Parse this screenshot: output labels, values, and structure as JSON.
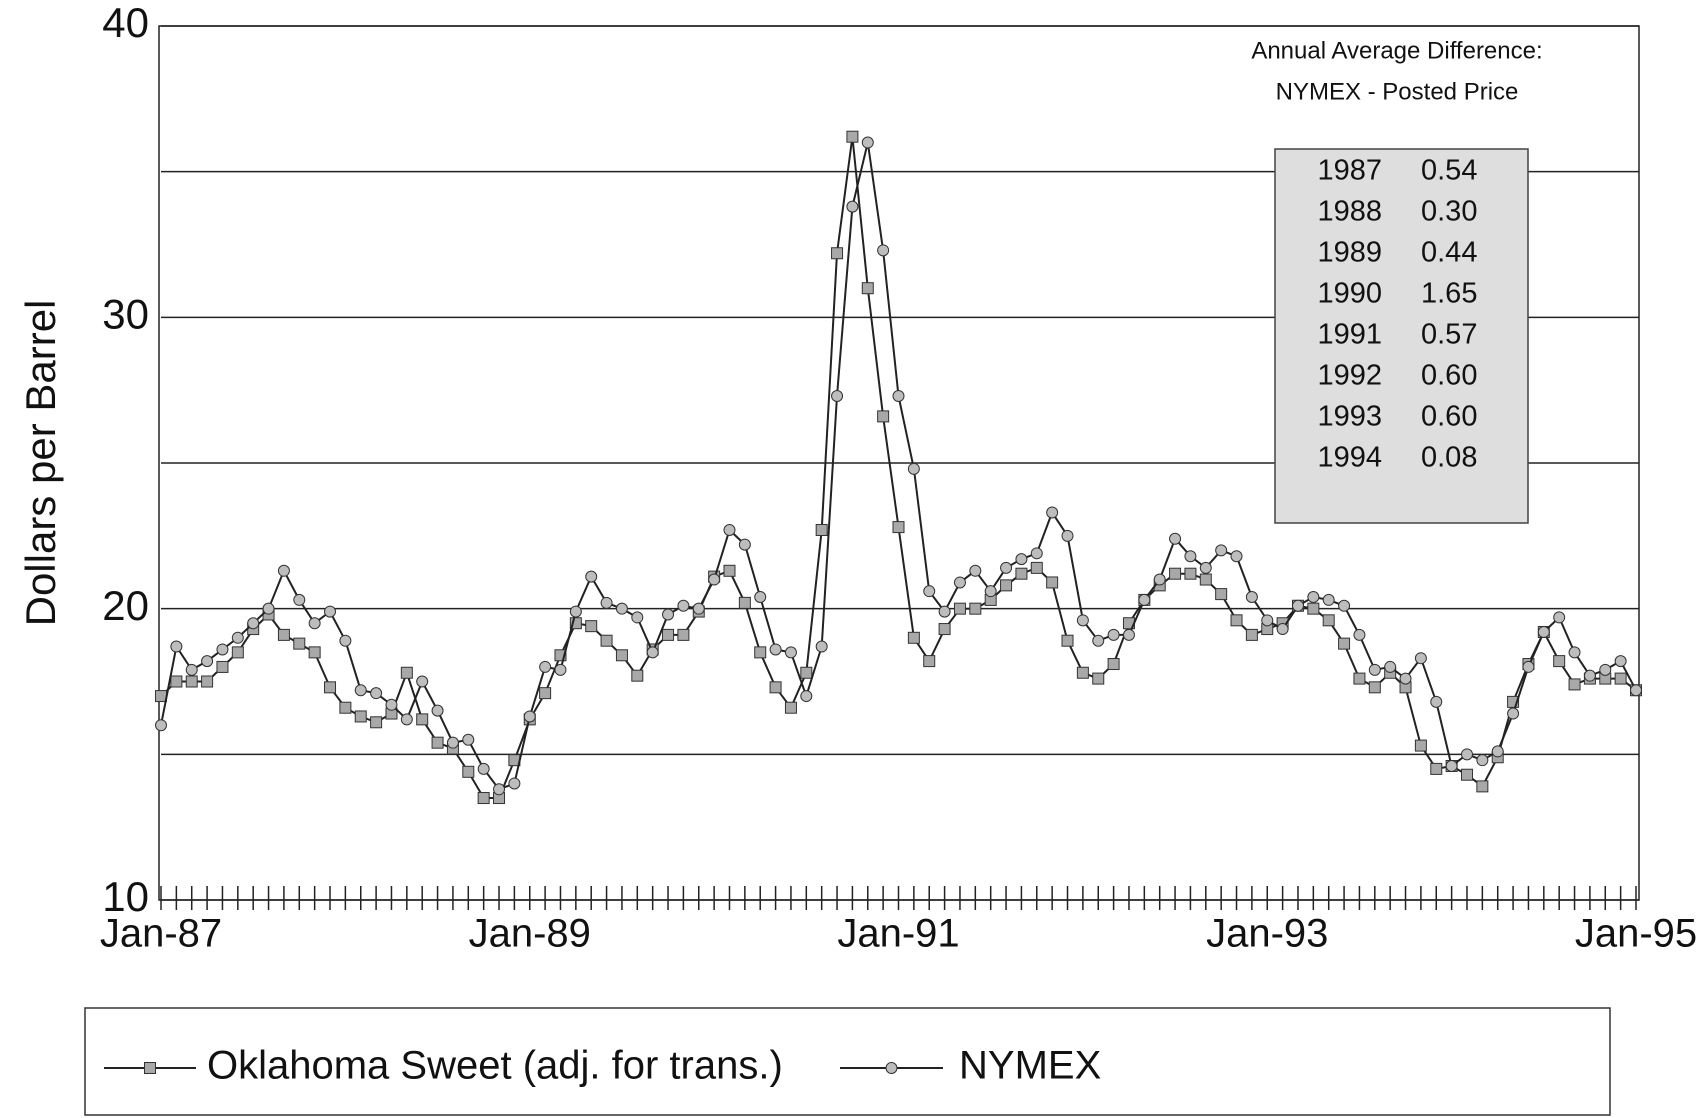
{
  "chart_data": {
    "type": "line",
    "y_label": "Dollars per Barrel",
    "categories": [
      "Jan-87",
      null,
      null,
      null,
      null,
      null,
      null,
      null,
      null,
      null,
      null,
      null,
      null,
      null,
      null,
      null,
      null,
      null,
      null,
      null,
      null,
      null,
      null,
      null,
      "Jan-89",
      null,
      null,
      null,
      null,
      null,
      null,
      null,
      null,
      null,
      null,
      null,
      null,
      null,
      null,
      null,
      null,
      null,
      null,
      null,
      null,
      null,
      null,
      null,
      "Jan-91",
      null,
      null,
      null,
      null,
      null,
      null,
      null,
      null,
      null,
      null,
      null,
      null,
      null,
      null,
      null,
      null,
      null,
      null,
      null,
      null,
      null,
      null,
      null,
      "Jan-93",
      null,
      null,
      null,
      null,
      null,
      null,
      null,
      null,
      null,
      null,
      null,
      null,
      null,
      null,
      null,
      null,
      null,
      null,
      null,
      null,
      null,
      null,
      null,
      "Jan-95"
    ],
    "ylim": [
      10,
      40
    ],
    "yticks": [
      10,
      20,
      30,
      40
    ],
    "minor_yticks": [
      15,
      25,
      35
    ],
    "grid": true,
    "series": [
      {
        "name": "Oklahoma Sweet (adj. for trans.)",
        "color": "#222222",
        "marker": "square",
        "values": [
          17.0,
          17.5,
          17.5,
          17.5,
          18.0,
          18.5,
          19.3,
          19.8,
          19.1,
          18.8,
          18.5,
          17.3,
          16.6,
          16.3,
          16.1,
          16.4,
          17.8,
          16.2,
          15.4,
          15.2,
          14.4,
          13.5,
          13.5,
          14.8,
          16.2,
          17.1,
          18.4,
          19.5,
          19.4,
          18.9,
          18.4,
          17.7,
          18.6,
          19.1,
          19.1,
          19.9,
          21.1,
          21.3,
          20.2,
          18.5,
          17.3,
          16.6,
          17.8,
          22.7,
          32.2,
          36.2,
          31.0,
          26.6,
          22.8,
          19.0,
          18.2,
          19.3,
          20.0,
          20.0,
          20.3,
          20.8,
          21.2,
          21.4,
          20.9,
          18.9,
          17.8,
          17.6,
          18.1,
          19.5,
          20.3,
          20.8,
          21.2,
          21.2,
          21.0,
          20.5,
          19.6,
          19.1,
          19.3,
          19.5,
          20.1,
          20.0,
          19.6,
          18.8,
          17.6,
          17.3,
          17.8,
          17.3,
          15.3,
          14.5,
          14.6,
          14.3,
          13.9,
          14.9,
          16.8,
          18.1,
          19.2,
          18.2,
          17.4,
          17.6,
          17.6,
          17.6,
          17.2
        ]
      },
      {
        "name": "NYMEX",
        "color": "#222222",
        "marker": "circle",
        "values": [
          16.0,
          18.7,
          17.9,
          18.2,
          18.6,
          19.0,
          19.5,
          20.0,
          21.3,
          20.3,
          19.5,
          19.9,
          18.9,
          17.2,
          17.1,
          16.7,
          16.2,
          17.5,
          16.5,
          15.4,
          15.5,
          14.5,
          13.8,
          14.0,
          16.3,
          18.0,
          17.9,
          19.9,
          21.1,
          20.2,
          20.0,
          19.7,
          18.5,
          19.8,
          20.1,
          20.0,
          21.0,
          22.7,
          22.2,
          20.4,
          18.6,
          18.5,
          17.0,
          18.7,
          27.3,
          33.8,
          36.0,
          32.3,
          27.3,
          24.8,
          20.6,
          19.9,
          20.9,
          21.3,
          20.6,
          21.4,
          21.7,
          21.9,
          23.3,
          22.5,
          19.6,
          18.9,
          19.1,
          19.1,
          20.3,
          21.0,
          22.4,
          21.8,
          21.4,
          22.0,
          21.8,
          20.4,
          19.6,
          19.3,
          20.1,
          20.4,
          20.3,
          20.1,
          19.1,
          17.9,
          18.0,
          17.6,
          18.3,
          16.8,
          14.6,
          15.0,
          14.8,
          15.1,
          16.4,
          18.0,
          19.2,
          19.7,
          18.5,
          17.7,
          17.9,
          18.2,
          17.2
        ]
      }
    ],
    "annotation": {
      "title": [
        "Annual Average Difference:",
        "NYMEX - Posted Price"
      ],
      "rows": [
        [
          "1987",
          "0.54"
        ],
        [
          "1988",
          "0.30"
        ],
        [
          "1989",
          "0.44"
        ],
        [
          "1990",
          "1.65"
        ],
        [
          "1991",
          "0.57"
        ],
        [
          "1992",
          "0.60"
        ],
        [
          "1993",
          "0.60"
        ],
        [
          "1994",
          "0.08"
        ]
      ]
    }
  }
}
